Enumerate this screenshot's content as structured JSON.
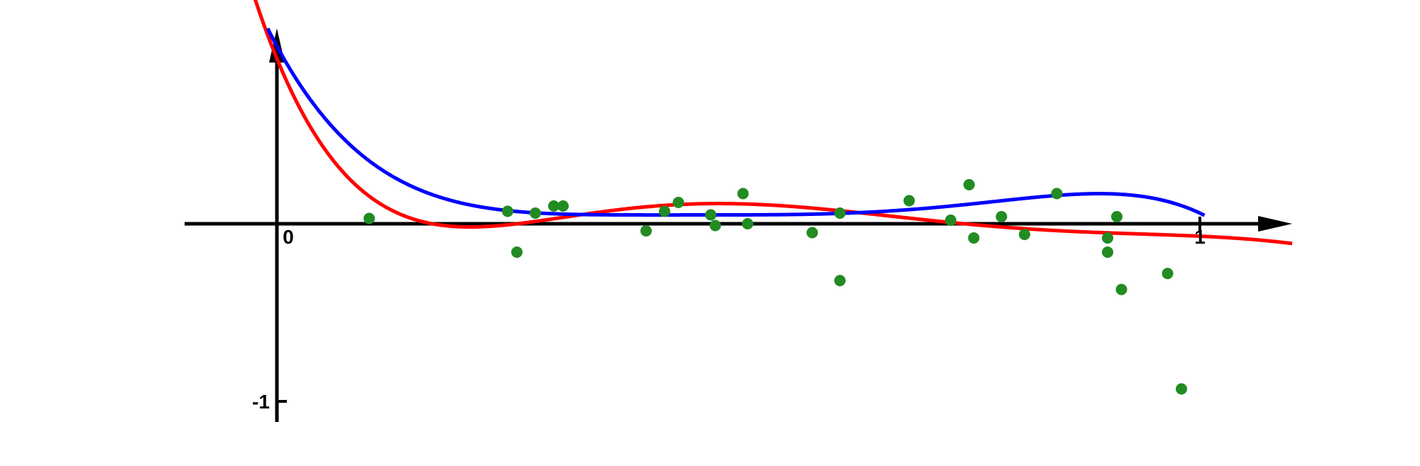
{
  "chart_data": {
    "type": "scatter",
    "title": "",
    "xlabel": "",
    "ylabel": "",
    "xlim": [
      -0.1,
      1.1
    ],
    "ylim": [
      -1.1,
      1.1
    ],
    "grid": false,
    "legend": "none",
    "xticks": [
      {
        "value": 0,
        "label": "0"
      },
      {
        "value": 1,
        "label": "1"
      }
    ],
    "yticks": [
      {
        "value": -1,
        "label": "-1"
      }
    ],
    "colors": {
      "axes": "#000000",
      "points": "#228b22",
      "fit_a": "#ff0000",
      "fit_b": "#0000ff"
    },
    "series": [
      {
        "type": "scatter",
        "points": [
          [
            0.1,
            0.03
          ],
          [
            0.25,
            0.07
          ],
          [
            0.26,
            -0.16
          ],
          [
            0.28,
            0.06
          ],
          [
            0.3,
            0.1
          ],
          [
            0.31,
            0.1
          ],
          [
            0.4,
            -0.04
          ],
          [
            0.42,
            0.07
          ],
          [
            0.435,
            0.12
          ],
          [
            0.47,
            0.05
          ],
          [
            0.475,
            -0.01
          ],
          [
            0.505,
            0.17
          ],
          [
            0.51,
            0.0
          ],
          [
            0.58,
            -0.05
          ],
          [
            0.61,
            -0.32
          ],
          [
            0.61,
            0.06
          ],
          [
            0.685,
            0.13
          ],
          [
            0.73,
            0.02
          ],
          [
            0.75,
            0.22
          ],
          [
            0.755,
            -0.08
          ],
          [
            0.785,
            0.04
          ],
          [
            0.81,
            -0.06
          ],
          [
            0.845,
            0.17
          ],
          [
            0.9,
            -0.08
          ],
          [
            0.9,
            -0.16
          ],
          [
            0.91,
            0.04
          ],
          [
            0.915,
            -0.37
          ],
          [
            0.965,
            -0.28
          ],
          [
            0.98,
            -0.93
          ]
        ]
      },
      {
        "type": "line",
        "x_start": -0.1,
        "x_end": 1.1,
        "coefficients_ascending": [
          0.93,
          -12.66,
          61.1,
          -133.6,
          145.9,
          -77.86,
          16.12
        ]
      },
      {
        "type": "line",
        "x_start": -0.01,
        "x_end": 1.005,
        "coefficients_ascending": [
          1.0,
          -9.6,
          38.16,
          -74.24,
          70.14,
          -25.4
        ]
      }
    ]
  }
}
